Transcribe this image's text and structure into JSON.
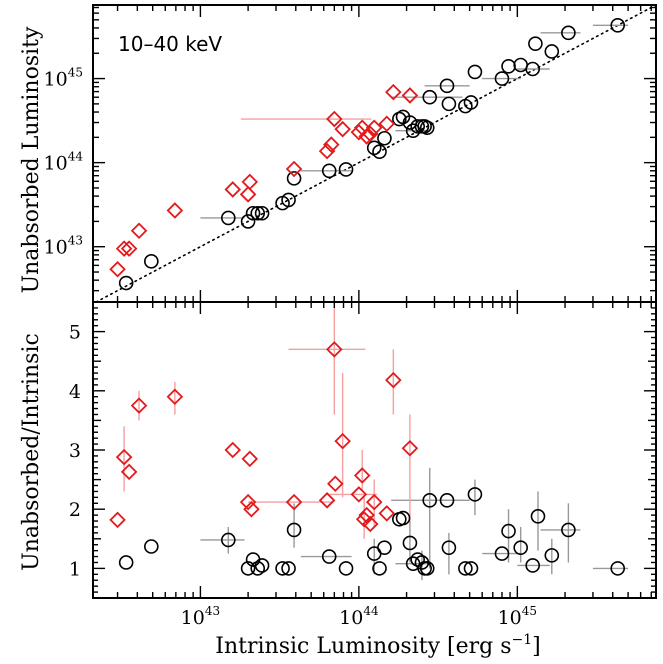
{
  "chart_data": [
    {
      "panel": "top",
      "type": "scatter",
      "annotation": "10–40 keV",
      "xlabel_main": "Intrinsic Luminosity [erg s",
      "xlabel_sup": "−1",
      "xlabel_end": "]",
      "ylabel": "Unabsorbed Luminosity",
      "x_scale": "log",
      "y_scale": "log",
      "xlim": [
        2.1e+42,
        7.5e+45
      ],
      "ylim": [
        2.2e+42,
        7.5e+45
      ],
      "x_ticks": [
        {
          "main": "10",
          "exp": "43"
        },
        {
          "main": "10",
          "exp": "44"
        },
        {
          "main": "10",
          "exp": "45"
        }
      ],
      "y_ticks": [
        {
          "main": "10",
          "exp": "43"
        },
        {
          "main": "10",
          "exp": "44"
        },
        {
          "main": "10",
          "exp": "45"
        }
      ],
      "reference_line": "y = x (dotted)",
      "colors": {
        "black_series": "#000000",
        "red_series": "#e31a1c",
        "black_err": "#999999",
        "red_err": "#f4a0a0"
      },
      "series": [
        {
          "points": [
            {
              "x": 3.4e+42,
              "y": 3.7e+42
            },
            {
              "x": 4.9e+42,
              "y": 6.7e+42
            },
            {
              "x": 1.5e+43,
              "y": 2.2e+43,
              "xerr": [
                1e+43,
                1.9e+43
              ]
            },
            {
              "x": 2e+43,
              "y": 2e+43
            },
            {
              "x": 2.15e+43,
              "y": 2.5e+43
            },
            {
              "x": 2.3e+43,
              "y": 2.5e+43
            },
            {
              "x": 2.45e+43,
              "y": 2.5e+43
            },
            {
              "x": 3.3e+43,
              "y": 3.3e+43
            },
            {
              "x": 3.6e+43,
              "y": 3.6e+43
            },
            {
              "x": 3.9e+43,
              "y": 6.5e+43
            },
            {
              "x": 6.5e+43,
              "y": 8e+43,
              "xerr": [
                4.3e+43,
                9e+43
              ]
            },
            {
              "x": 8.3e+43,
              "y": 8.3e+43
            },
            {
              "x": 1.25e+44,
              "y": 1.5e+44
            },
            {
              "x": 1.35e+44,
              "y": 1.35e+44
            },
            {
              "x": 1.45e+44,
              "y": 1.95e+44
            },
            {
              "x": 1.8e+44,
              "y": 3.3e+44
            },
            {
              "x": 1.9e+44,
              "y": 3.5e+44
            },
            {
              "x": 2.1e+44,
              "y": 3e+44
            },
            {
              "x": 2.2e+44,
              "y": 2.4e+44,
              "xerr": [
                1.7e+44,
                2.8e+44
              ]
            },
            {
              "x": 2.35e+44,
              "y": 2.7e+44
            },
            {
              "x": 2.5e+44,
              "y": 2.7e+44
            },
            {
              "x": 2.6e+44,
              "y": 2.7e+44
            },
            {
              "x": 2.7e+44,
              "y": 2.6e+44
            },
            {
              "x": 2.8e+44,
              "y": 6e+44,
              "xerr": [
                1.6e+44,
                4.5e+44
              ]
            },
            {
              "x": 3.6e+44,
              "y": 8.2e+44,
              "xerr": [
                2.6e+44,
                5e+44
              ]
            },
            {
              "x": 3.7e+44,
              "y": 5e+44
            },
            {
              "x": 4.7e+44,
              "y": 4.7e+44
            },
            {
              "x": 5.1e+44,
              "y": 5.2e+44
            },
            {
              "x": 5.4e+44,
              "y": 1.2e+45
            },
            {
              "x": 8e+44,
              "y": 1e+45,
              "xerr": [
                6e+44,
                1.05e+45
              ]
            },
            {
              "x": 8.8e+44,
              "y": 1.4e+45
            },
            {
              "x": 1.05e+45,
              "y": 1.45e+45
            },
            {
              "x": 1.25e+45,
              "y": 1.3e+45,
              "xerr": [
                1e+45,
                1.6e+45
              ]
            },
            {
              "x": 1.3e+45,
              "y": 2.6e+45
            },
            {
              "x": 1.65e+45,
              "y": 2.1e+45
            },
            {
              "x": 2.1e+45,
              "y": 3.5e+45,
              "xerr": [
                1.4e+45,
                2.5e+45
              ]
            },
            {
              "x": 4.3e+45,
              "y": 4.3e+45,
              "xerr": [
                3e+45,
                5e+45
              ]
            }
          ]
        },
        {
          "points": [
            {
              "x": 3e+42,
              "y": 5.4e+42
            },
            {
              "x": 3.3e+42,
              "y": 9.5e+42
            },
            {
              "x": 3.55e+42,
              "y": 9.5e+42
            },
            {
              "x": 4.1e+42,
              "y": 1.55e+43
            },
            {
              "x": 6.9e+42,
              "y": 2.7e+43
            },
            {
              "x": 1.6e+43,
              "y": 4.8e+43
            },
            {
              "x": 2e+43,
              "y": 4.2e+43
            },
            {
              "x": 2.05e+43,
              "y": 5.9e+43
            },
            {
              "x": 3.9e+43,
              "y": 8.4e+43
            },
            {
              "x": 6.3e+43,
              "y": 1.37e+44
            },
            {
              "x": 6.7e+43,
              "y": 1.64e+44
            },
            {
              "x": 7e+43,
              "y": 3.3e+44,
              "xerr": [
                1.8e+43,
                1.2e+44
              ]
            },
            {
              "x": 7.9e+43,
              "y": 2.5e+44
            },
            {
              "x": 1e+44,
              "y": 2.3e+44
            },
            {
              "x": 1.05e+44,
              "y": 2.6e+44
            },
            {
              "x": 1.12e+44,
              "y": 2.05e+44
            },
            {
              "x": 1.18e+44,
              "y": 2.2e+44
            },
            {
              "x": 1.25e+44,
              "y": 2.6e+44
            },
            {
              "x": 1.5e+44,
              "y": 2.9e+44
            },
            {
              "x": 1.65e+44,
              "y": 6.9e+44
            },
            {
              "x": 2.1e+44,
              "y": 6.3e+44
            }
          ]
        }
      ]
    },
    {
      "panel": "bottom",
      "type": "scatter",
      "xlabel_main": "Intrinsic Luminosity [erg s",
      "xlabel_sup": "−1",
      "xlabel_end": "]",
      "ylabel": "Unabsorbed/Intrinsic",
      "x_scale": "log",
      "y_scale": "linear",
      "xlim": [
        2.1e+42,
        7.5e+45
      ],
      "ylim": [
        0.5,
        5.5
      ],
      "x_ticks": [
        {
          "main": "10",
          "exp": "43"
        },
        {
          "main": "10",
          "exp": "44"
        },
        {
          "main": "10",
          "exp": "45"
        }
      ],
      "y_ticks": [
        "1",
        "2",
        "3",
        "4",
        "5"
      ],
      "colors": {
        "black_series": "#000000",
        "red_series": "#e31a1c",
        "black_err": "#999999",
        "red_err": "#f4a0a0"
      },
      "series": [
        {
          "points": [
            {
              "x": 3.4e+42,
              "y": 1.1
            },
            {
              "x": 4.9e+42,
              "y": 1.37
            },
            {
              "x": 1.5e+43,
              "y": 1.48,
              "xerr": [
                1e+43,
                1.9e+43
              ],
              "yerr": [
                1.25,
                1.7
              ]
            },
            {
              "x": 2e+43,
              "y": 1.0
            },
            {
              "x": 2.15e+43,
              "y": 1.15
            },
            {
              "x": 2.3e+43,
              "y": 1.0
            },
            {
              "x": 2.45e+43,
              "y": 1.05
            },
            {
              "x": 3.3e+43,
              "y": 1.0
            },
            {
              "x": 3.6e+43,
              "y": 1.0
            },
            {
              "x": 3.9e+43,
              "y": 1.65,
              "yerr": [
                1.35,
                2.1
              ]
            },
            {
              "x": 6.5e+43,
              "y": 1.2,
              "xerr": [
                4.3e+43,
                9e+43
              ]
            },
            {
              "x": 8.3e+43,
              "y": 1.0
            },
            {
              "x": 1.25e+44,
              "y": 1.25,
              "yerr": [
                0.9,
                1.5
              ]
            },
            {
              "x": 1.35e+44,
              "y": 1.0
            },
            {
              "x": 1.45e+44,
              "y": 1.35
            },
            {
              "x": 1.8e+44,
              "y": 1.83
            },
            {
              "x": 1.9e+44,
              "y": 1.85
            },
            {
              "x": 2.1e+44,
              "y": 1.43,
              "yerr": [
                1.1,
                1.8
              ]
            },
            {
              "x": 2.2e+44,
              "y": 1.08,
              "xerr": [
                1.7e+44,
                2.8e+44
              ]
            },
            {
              "x": 2.35e+44,
              "y": 1.15
            },
            {
              "x": 2.5e+44,
              "y": 1.1,
              "yerr": [
                0.8,
                1.3
              ]
            },
            {
              "x": 2.6e+44,
              "y": 1.0
            },
            {
              "x": 2.7e+44,
              "y": 1.0
            },
            {
              "x": 2.8e+44,
              "y": 2.15,
              "xerr": [
                1.6e+44,
                4.5e+44
              ],
              "yerr": [
                1.0,
                2.7
              ]
            },
            {
              "x": 3.6e+44,
              "y": 2.15,
              "xerr": [
                2.6e+44,
                5e+44
              ]
            },
            {
              "x": 3.7e+44,
              "y": 1.35,
              "yerr": [
                0.9,
                1.6
              ]
            },
            {
              "x": 4.7e+44,
              "y": 1.0
            },
            {
              "x": 5.1e+44,
              "y": 1.0
            },
            {
              "x": 5.4e+44,
              "y": 2.25,
              "yerr": [
                1.9,
                2.5
              ]
            },
            {
              "x": 8e+44,
              "y": 1.25,
              "xerr": [
                6e+44,
                1.05e+45
              ]
            },
            {
              "x": 8.8e+44,
              "y": 1.63,
              "yerr": [
                1.1,
                2.0
              ]
            },
            {
              "x": 1.05e+45,
              "y": 1.35,
              "yerr": [
                1.1,
                1.7
              ]
            },
            {
              "x": 1.25e+45,
              "y": 1.05,
              "xerr": [
                1e+45,
                1.6e+45
              ]
            },
            {
              "x": 1.35e+45,
              "y": 1.88,
              "yerr": [
                1.3,
                2.3
              ]
            },
            {
              "x": 1.65e+45,
              "y": 1.22,
              "yerr": [
                0.9,
                1.5
              ]
            },
            {
              "x": 2.1e+45,
              "y": 1.65,
              "xerr": [
                1.4e+45,
                2.5e+45
              ],
              "yerr": [
                1.1,
                2.1
              ]
            },
            {
              "x": 4.3e+45,
              "y": 1.0,
              "xerr": [
                3e+45,
                5e+45
              ]
            }
          ]
        },
        {
          "points": [
            {
              "x": 3e+42,
              "y": 1.82
            },
            {
              "x": 3.3e+42,
              "y": 2.88,
              "yerr": [
                2.3,
                3.4
              ]
            },
            {
              "x": 3.55e+42,
              "y": 2.63
            },
            {
              "x": 4.1e+42,
              "y": 3.75,
              "yerr": [
                3.5,
                4.0
              ]
            },
            {
              "x": 6.9e+42,
              "y": 3.9,
              "yerr": [
                3.6,
                4.15
              ]
            },
            {
              "x": 1.6e+43,
              "y": 3.0
            },
            {
              "x": 2e+43,
              "y": 2.12
            },
            {
              "x": 2.05e+43,
              "y": 2.85
            },
            {
              "x": 2.1e+43,
              "y": 2.0
            },
            {
              "x": 3.9e+43,
              "y": 2.12,
              "xerr": [
                2e+43,
                6.8e+43
              ]
            },
            {
              "x": 6.3e+43,
              "y": 2.15
            },
            {
              "x": 7e+43,
              "y": 4.7,
              "xerr": [
                3.6e+43,
                1.1e+44
              ],
              "yerr": [
                3.6,
                5.5
              ]
            },
            {
              "x": 7.1e+43,
              "y": 2.43
            },
            {
              "x": 7.9e+43,
              "y": 3.15,
              "yerr": [
                2.2,
                4.3
              ]
            },
            {
              "x": 1e+44,
              "y": 2.25,
              "xerr": [
                6.3e+43,
                1.3e+44
              ]
            },
            {
              "x": 1.05e+44,
              "y": 2.57,
              "yerr": [
                2.3,
                3.0
              ]
            },
            {
              "x": 1.08e+44,
              "y": 1.83,
              "yerr": [
                1.5,
                2.2
              ]
            },
            {
              "x": 1.12e+44,
              "y": 1.9
            },
            {
              "x": 1.18e+44,
              "y": 1.75
            },
            {
              "x": 1.25e+44,
              "y": 2.12,
              "yerr": [
                1.7,
                2.5
              ]
            },
            {
              "x": 1.5e+44,
              "y": 1.93
            },
            {
              "x": 1.65e+44,
              "y": 4.18,
              "yerr": [
                3.6,
                4.7
              ]
            },
            {
              "x": 2.1e+44,
              "y": 3.03,
              "yerr": [
                1.8,
                3.6
              ]
            }
          ]
        }
      ]
    }
  ]
}
